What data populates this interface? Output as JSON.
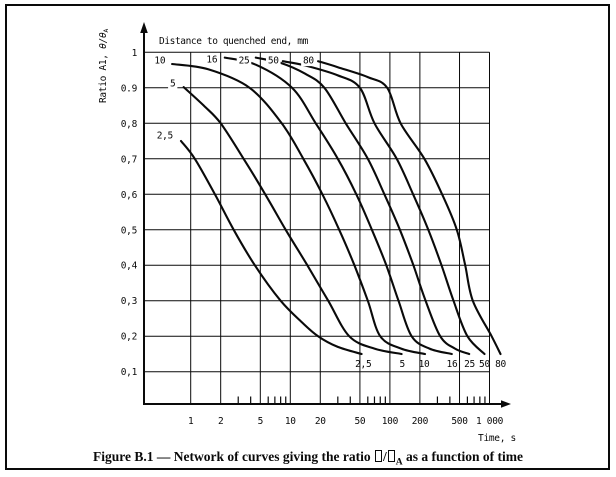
{
  "figure": {
    "caption_prefix": "Figure B.1 — Network of curves giving the ratio ",
    "caption_slash": "/",
    "caption_theta_sub": "A",
    "caption_suffix": " as a function of time"
  },
  "chart_data": {
    "type": "line",
    "title": "Distance to quenched end, mm",
    "xlabel": "Time, s",
    "ylabel_prefix": "Ratio A1, ",
    "ylabel_italic": "θ/θ",
    "ylabel_sub": "A",
    "x_scale": "log",
    "grid": true,
    "legend": "none",
    "xlim": [
      0.34,
      1000
    ],
    "ylim": [
      0,
      1.0
    ],
    "x_tick_values": [
      1,
      2,
      5,
      10,
      20,
      50,
      100,
      200,
      500,
      1000
    ],
    "x_tick_labels": [
      "1",
      "2",
      "5",
      "10",
      "20",
      "50",
      "100",
      "200",
      "500",
      "1 000"
    ],
    "x_minor_tick_values": [
      3,
      4,
      6,
      7,
      8,
      9,
      30,
      40,
      60,
      70,
      80,
      90,
      300,
      400,
      600,
      700,
      800,
      900
    ],
    "y_tick_values": [
      1.0,
      0.9,
      0.8,
      0.7,
      0.6,
      0.5,
      0.4,
      0.3,
      0.2,
      0.1
    ],
    "y_tick_labels": [
      "1",
      "0.9",
      "0,8",
      "0,7",
      "0,6",
      "0,5",
      "0,4",
      "0,3",
      "0,2",
      "0,1"
    ],
    "series": [
      {
        "name": "2,5",
        "distance_mm": 2.5,
        "label_top": {
          "t": 0.55,
          "r": 0.767
        },
        "label_bottom": {
          "t": 54,
          "r": 0.123
        },
        "points": [
          [
            0.8,
            0.75
          ],
          [
            1.1,
            0.7
          ],
          [
            1.75,
            0.6
          ],
          [
            2.7,
            0.5
          ],
          [
            4.4,
            0.4
          ],
          [
            8,
            0.3
          ],
          [
            13,
            0.24
          ],
          [
            19,
            0.2
          ],
          [
            30,
            0.17
          ],
          [
            52,
            0.15
          ]
        ]
      },
      {
        "name": "5",
        "distance_mm": 5,
        "label_top": {
          "t": 0.66,
          "r": 0.913
        },
        "label_bottom": {
          "t": 133,
          "r": 0.123
        },
        "points": [
          [
            0.85,
            0.902
          ],
          [
            1.35,
            0.85
          ],
          [
            2.0,
            0.8
          ],
          [
            3.4,
            0.7
          ],
          [
            5.6,
            0.6
          ],
          [
            9,
            0.5
          ],
          [
            14.8,
            0.4
          ],
          [
            24,
            0.3
          ],
          [
            39,
            0.2
          ],
          [
            70,
            0.165
          ],
          [
            131,
            0.15
          ]
        ]
      },
      {
        "name": "10",
        "distance_mm": 10,
        "label_top": {
          "t": 0.49,
          "r": 0.978
        },
        "label_bottom": {
          "t": 220,
          "r": 0.123
        },
        "points": [
          [
            0.65,
            0.967
          ],
          [
            1.5,
            0.952
          ],
          [
            3.9,
            0.9
          ],
          [
            8.2,
            0.8
          ],
          [
            13.5,
            0.7
          ],
          [
            21,
            0.6
          ],
          [
            31,
            0.5
          ],
          [
            44,
            0.4
          ],
          [
            60,
            0.3
          ],
          [
            80,
            0.2
          ],
          [
            130,
            0.165
          ],
          [
            225,
            0.15
          ]
        ]
      },
      {
        "name": "16",
        "distance_mm": 16,
        "label_top": {
          "t": 1.63,
          "r": 0.981
        },
        "label_bottom": {
          "t": 420,
          "r": 0.123
        },
        "points": [
          [
            2.2,
            0.985
          ],
          [
            4.5,
            0.965
          ],
          [
            10.4,
            0.9
          ],
          [
            18,
            0.8
          ],
          [
            30,
            0.7
          ],
          [
            46,
            0.6
          ],
          [
            66,
            0.5
          ],
          [
            92,
            0.4
          ],
          [
            122,
            0.3
          ],
          [
            165,
            0.2
          ],
          [
            250,
            0.165
          ],
          [
            418,
            0.15
          ]
        ]
      },
      {
        "name": "25",
        "distance_mm": 25,
        "label_top": {
          "t": 3.43,
          "r": 0.978
        },
        "label_bottom": {
          "t": 630,
          "r": 0.123
        },
        "points": [
          [
            4.5,
            0.985
          ],
          [
            8,
            0.97
          ],
          [
            14,
            0.94
          ],
          [
            22,
            0.9
          ],
          [
            36,
            0.8
          ],
          [
            60,
            0.7
          ],
          [
            88,
            0.6
          ],
          [
            126,
            0.5
          ],
          [
            172,
            0.4
          ],
          [
            228,
            0.3
          ],
          [
            320,
            0.2
          ],
          [
            450,
            0.165
          ],
          [
            626,
            0.15
          ]
        ]
      },
      {
        "name": "50",
        "distance_mm": 50,
        "label_top": {
          "t": 6.75,
          "r": 0.978
        },
        "label_bottom": {
          "t": 890,
          "r": 0.123
        },
        "points": [
          [
            8.4,
            0.975
          ],
          [
            14,
            0.963
          ],
          [
            30,
            0.935
          ],
          [
            50,
            0.9
          ],
          [
            70,
            0.8
          ],
          [
            117,
            0.7
          ],
          [
            171,
            0.6
          ],
          [
            243,
            0.5
          ],
          [
            330,
            0.4
          ],
          [
            435,
            0.3
          ],
          [
            600,
            0.2
          ],
          [
            890,
            0.15
          ]
        ]
      },
      {
        "name": "80",
        "distance_mm": 80,
        "label_top": {
          "t": 15.2,
          "r": 0.978
        },
        "label_bottom": {
          "t": 1290,
          "r": 0.123
        },
        "points": [
          [
            19,
            0.975
          ],
          [
            30,
            0.958
          ],
          [
            60,
            0.93
          ],
          [
            94,
            0.9
          ],
          [
            128,
            0.8
          ],
          [
            222,
            0.7
          ],
          [
            334,
            0.6
          ],
          [
            470,
            0.5
          ],
          [
            570,
            0.4
          ],
          [
            680,
            0.3
          ],
          [
            1050,
            0.2
          ],
          [
            1290,
            0.15
          ]
        ]
      }
    ]
  }
}
